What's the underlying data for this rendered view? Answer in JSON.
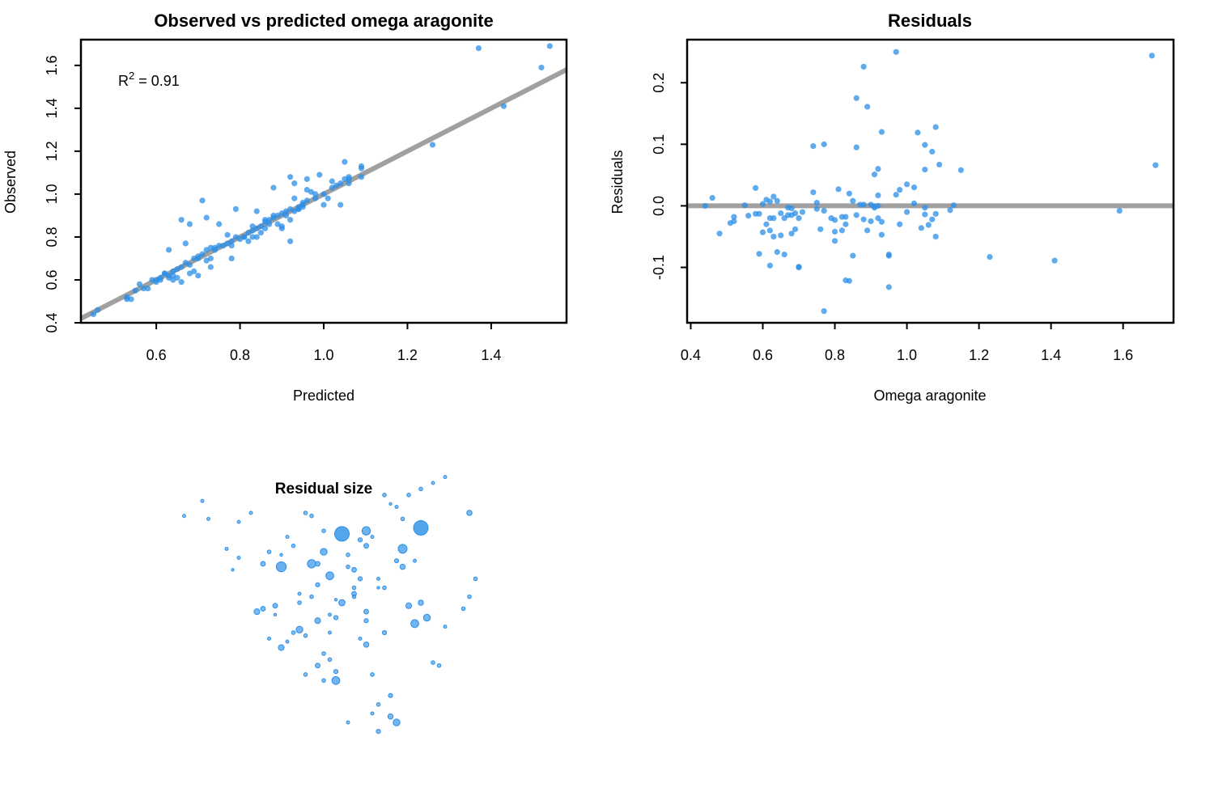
{
  "colors": {
    "point": "#2b8fe8",
    "line": "#a0a0a0",
    "frame": "#000000"
  },
  "chart_data": [
    {
      "type": "scatter",
      "title": "Observed vs predicted omega aragonite",
      "xlabel": "Predicted",
      "ylabel": "Observed",
      "xlim": [
        0.42,
        1.58
      ],
      "ylim": [
        0.4,
        1.72
      ],
      "xticks": [
        "0.6",
        "0.8",
        "1.0",
        "1.2",
        "1.4"
      ],
      "yticks": [
        "0.4",
        "0.6",
        "0.8",
        "1.0",
        "1.2",
        "1.4",
        "1.6"
      ],
      "annotation": {
        "base": "R",
        "sup": "2",
        "rest": " = 0.91"
      },
      "fit_line": {
        "intercept": 0.0,
        "slope": 1.0
      },
      "series": [
        {
          "x": [
            0.45,
            0.46,
            0.53,
            0.54,
            0.55,
            0.56,
            0.58,
            0.6,
            0.61,
            0.62,
            0.63,
            0.64,
            0.65,
            0.66,
            0.67,
            0.68,
            0.69,
            0.7,
            0.71,
            0.72,
            0.73,
            0.75,
            0.77,
            0.78,
            0.8,
            0.81,
            0.82,
            0.83,
            0.84,
            0.85,
            0.86,
            0.87,
            0.88,
            0.89,
            0.9,
            0.91,
            0.92,
            0.93,
            0.94,
            0.95,
            0.96,
            0.98,
            1.0,
            1.02,
            1.04,
            1.05,
            1.06,
            1.09,
            0.63,
            0.66,
            0.71,
            0.79,
            0.84,
            0.88,
            0.92,
            0.93,
            0.96,
            0.99,
            1.05,
            1.09,
            1.26,
            1.37,
            1.43,
            1.52,
            1.54,
            0.64,
            0.68,
            0.72,
            0.74,
            0.77,
            0.83,
            0.86,
            0.9,
            0.92,
            0.94,
            0.97,
            1.0,
            1.04,
            0.61,
            0.64,
            0.66,
            0.67,
            0.7,
            0.73,
            0.75,
            0.78,
            0.81,
            0.85,
            0.88,
            0.9,
            0.94,
            0.96,
            1.02,
            1.06,
            0.53,
            0.57,
            0.59,
            0.62,
            0.65,
            0.68,
            0.7,
            0.72,
            0.74,
            0.76,
            0.79,
            0.82,
            0.84,
            0.86,
            0.89,
            0.91,
            0.93,
            0.95,
            1.01,
            1.03,
            1.06,
            1.09,
            0.6,
            0.63,
            0.69,
            0.73,
            0.78,
            0.83,
            0.87,
            0.92,
            0.95,
            0.98
          ],
          "y": [
            0.44,
            0.46,
            0.52,
            0.51,
            0.55,
            0.58,
            0.56,
            0.59,
            0.61,
            0.63,
            0.62,
            0.64,
            0.65,
            0.66,
            0.68,
            0.67,
            0.7,
            0.71,
            0.72,
            0.74,
            0.75,
            0.76,
            0.77,
            0.78,
            0.79,
            0.8,
            0.82,
            0.83,
            0.84,
            0.85,
            0.87,
            0.88,
            0.89,
            0.9,
            0.91,
            0.92,
            0.93,
            0.92,
            0.94,
            0.96,
            0.97,
            0.98,
            1.0,
            1.03,
            1.05,
            1.07,
            1.08,
            1.13,
            0.74,
            0.88,
            0.97,
            0.93,
            0.92,
            1.03,
            1.08,
            1.05,
            1.07,
            1.09,
            1.15,
            1.12,
            1.23,
            1.68,
            1.41,
            1.59,
            1.69,
            0.6,
            0.86,
            0.89,
            0.75,
            0.81,
            0.85,
            0.88,
            0.85,
            0.78,
            0.93,
            1.01,
            0.95,
            0.95,
            0.6,
            0.62,
            0.59,
            0.77,
            0.7,
            0.66,
            0.86,
            0.7,
            0.8,
            0.82,
            0.9,
            0.84,
            0.93,
            1.02,
            1.06,
            1.07,
            0.51,
            0.56,
            0.6,
            0.63,
            0.61,
            0.63,
            0.62,
            0.69,
            0.74,
            0.76,
            0.8,
            0.78,
            0.8,
            0.84,
            0.86,
            0.9,
            0.98,
            0.94,
            0.98,
            1.04,
            1.05,
            1.08,
            0.6,
            0.61,
            0.64,
            0.7,
            0.76,
            0.8,
            0.86,
            0.88,
            0.95,
            1.0
          ]
        }
      ]
    },
    {
      "type": "scatter",
      "title": "Residuals",
      "xlabel": "Omega aragonite",
      "ylabel": "Residuals",
      "xlim": [
        0.39,
        1.74
      ],
      "ylim": [
        -0.19,
        0.27
      ],
      "xticks": [
        "0.4",
        "0.6",
        "0.8",
        "1.0",
        "1.2",
        "1.4",
        "1.6"
      ],
      "yticks": [
        "-0.1",
        "0.0",
        "0.1",
        "0.2"
      ],
      "reference_line": 0.0,
      "series": [
        {
          "x": [
            0.44,
            0.46,
            0.48,
            0.51,
            0.52,
            0.52,
            0.55,
            0.56,
            0.58,
            0.58,
            0.59,
            0.59,
            0.6,
            0.6,
            0.61,
            0.61,
            0.62,
            0.62,
            0.62,
            0.63,
            0.63,
            0.63,
            0.64,
            0.64,
            0.65,
            0.65,
            0.66,
            0.66,
            0.67,
            0.67,
            0.68,
            0.68,
            0.68,
            0.69,
            0.69,
            0.7,
            0.7,
            0.71,
            0.74,
            0.74,
            0.75,
            0.75,
            0.76,
            0.77,
            0.77,
            0.79,
            0.8,
            0.8,
            0.8,
            0.81,
            0.82,
            0.82,
            0.83,
            0.83,
            0.84,
            0.84,
            0.85,
            0.85,
            0.86,
            0.86,
            0.86,
            0.87,
            0.88,
            0.88,
            0.88,
            0.89,
            0.89,
            0.9,
            0.9,
            0.91,
            0.91,
            0.91,
            0.92,
            0.92,
            0.92,
            0.92,
            0.93,
            0.93,
            0.93,
            0.95,
            0.95,
            0.97,
            0.97,
            0.98,
            0.98,
            1.0,
            1.0,
            1.02,
            1.02,
            1.03,
            1.04,
            1.05,
            1.05,
            1.05,
            1.05,
            1.06,
            1.07,
            1.07,
            1.08,
            1.08,
            1.08,
            1.09,
            1.12,
            1.13,
            1.15,
            1.23,
            1.41,
            1.59,
            1.68,
            1.69,
            0.77,
            0.83,
            0.62,
            0.7,
            0.95
          ],
          "y": [
            0.0,
            0.013,
            -0.045,
            -0.028,
            -0.018,
            -0.025,
            0.001,
            -0.016,
            0.029,
            -0.013,
            -0.078,
            -0.013,
            0.003,
            -0.043,
            0.01,
            -0.03,
            -0.04,
            -0.02,
            0.007,
            0.015,
            -0.05,
            -0.02,
            0.008,
            -0.075,
            -0.048,
            -0.012,
            -0.079,
            -0.02,
            -0.003,
            -0.015,
            -0.004,
            -0.045,
            -0.015,
            -0.012,
            -0.038,
            -0.02,
            -0.099,
            -0.01,
            0.097,
            0.022,
            0.005,
            -0.005,
            -0.038,
            0.1,
            -0.008,
            -0.02,
            -0.057,
            -0.023,
            -0.042,
            0.027,
            -0.04,
            -0.018,
            -0.03,
            -0.018,
            0.02,
            -0.122,
            -0.081,
            0.008,
            0.175,
            0.095,
            -0.015,
            0.002,
            0.226,
            -0.022,
            0.002,
            0.161,
            -0.04,
            -0.025,
            0.002,
            0.051,
            -0.003,
            -0.001,
            0.06,
            0.017,
            -0.02,
            0.0,
            0.12,
            -0.047,
            -0.026,
            -0.079,
            -0.132,
            0.25,
            0.018,
            0.026,
            -0.03,
            -0.01,
            0.035,
            0.004,
            0.03,
            0.119,
            -0.036,
            0.099,
            -0.003,
            -0.014,
            0.059,
            -0.031,
            0.088,
            -0.022,
            0.128,
            -0.05,
            -0.013,
            0.067,
            -0.007,
            0.001,
            0.058,
            -0.083,
            -0.089,
            -0.008,
            0.244,
            0.066,
            -0.171,
            -0.121,
            -0.097,
            -0.1,
            -0.081
          ]
        }
      ]
    },
    {
      "type": "scatter",
      "title": "Residual size",
      "series": [
        {
          "x": [
            0.92,
            0.91,
            0.89,
            0.82,
            0.88,
            0.83,
            0.78,
            0.84,
            0.85,
            0.8,
            0.93,
            0.79,
            0.85,
            0.87,
            0.76,
            0.81,
            0.77,
            0.73,
            0.87,
            0.69,
            0.81,
            0.82,
            0.78,
            0.76,
            0.79,
            0.7,
            0.72,
            0.71,
            0.74,
            0.75,
            0.79,
            0.82,
            0.77,
            0.7,
            0.83,
            0.81,
            0.86,
            0.84,
            0.87,
            0.86,
            0.8,
            0.81,
            0.89,
            0.95,
            0.97,
            0.94,
            0.96,
            0.93,
            0.92,
            0.9,
            0.98,
            0.99,
            0.86,
            0.96,
            1.0,
            1.04,
            0.93,
            0.94,
            0.96,
            0.98,
            0.92,
            0.91,
            0.95,
            0.87,
            0.88,
            0.89,
            0.85,
            0.84,
            0.73,
            0.91,
            0.89,
            0.88,
            0.79,
            0.8,
            0.66,
            0.68,
            0.61,
            0.6,
            0.57,
            0.64,
            0.66,
            0.65,
            0.72,
            0.73,
            0.74,
            0.82,
            0.87,
            0.9,
            1.0,
            1.03,
            1.04,
            1.05,
            0.78,
            0.77,
            0.9,
            0.85,
            0.71,
            0.75,
            0.76,
            0.8
          ],
          "y": [
            0.1,
            0.12,
            0.07,
            0.24,
            0.26,
            0.5,
            0.63,
            0.62,
            0.61,
            0.67,
            0.68,
            0.56,
            0.53,
            0.47,
            0.41,
            0.4,
            0.39,
            0.35,
            0.36,
            0.47,
            0.46,
            0.45,
            0.52,
            0.53,
            0.44,
            0.48,
            0.49,
            0.38,
            0.37,
            0.4,
            0.29,
            0.27,
            0.26,
            0.63,
            0.73,
            0.59,
            0.58,
            0.66,
            0.69,
            0.71,
            0.33,
            0.31,
            0.55,
            0.43,
            0.45,
            0.49,
            0.5,
            0.62,
            0.64,
            0.4,
            0.3,
            0.29,
            0.38,
            0.75,
            0.92,
            0.8,
            0.78,
            0.86,
            0.88,
            0.9,
            0.82,
            0.83,
            0.64,
            0.74,
            0.72,
            0.58,
            0.55,
            0.1,
            0.62,
            0.19,
            0.16,
            0.13,
            0.63,
            0.74,
            0.77,
            0.8,
            0.78,
            0.84,
            0.79,
            0.68,
            0.65,
            0.61,
            0.46,
            0.66,
            0.72,
            0.51,
            0.44,
            0.55,
            0.42,
            0.48,
            0.52,
            0.58,
            0.79,
            0.8,
            0.86,
            0.52,
            0.67,
            0.69,
            0.5,
            0.24
          ],
          "size": [
            0.1,
            0.07,
            0.05,
            0.12,
            0.04,
            0.09,
            0.13,
            0.04,
            0.06,
            0.1,
            0.14,
            0.05,
            0.06,
            0.06,
            0.1,
            0.03,
            0.04,
            0.08,
            0.07,
            0.08,
            0.03,
            0.05,
            0.04,
            0.03,
            0.08,
            0.06,
            0.06,
            0.03,
            0.03,
            0.04,
            0.06,
            0.05,
            0.04,
            0.06,
            0.25,
            0.12,
            0.05,
            0.04,
            0.06,
            0.05,
            0.04,
            0.04,
            0.02,
            0.12,
            0.1,
            0.08,
            0.07,
            0.07,
            0.05,
            0.05,
            0.04,
            0.04,
            0.03,
            0.25,
            0.03,
            0.07,
            0.04,
            0.04,
            0.04,
            0.03,
            0.03,
            0.02,
            0.03,
            0.13,
            0.03,
            0.03,
            0.04,
            0.03,
            0.16,
            0.05,
            0.04,
            0.03,
            0.06,
            0.04,
            0.03,
            0.03,
            0.03,
            0.03,
            0.03,
            0.03,
            0.03,
            0.02,
            0.02,
            0.02,
            0.03,
            0.02,
            0.05,
            0.04,
            0.03,
            0.04,
            0.04,
            0.04,
            0.04,
            0.04,
            0.04,
            0.04,
            0.04,
            0.04,
            0.04,
            0.04
          ]
        }
      ]
    }
  ]
}
